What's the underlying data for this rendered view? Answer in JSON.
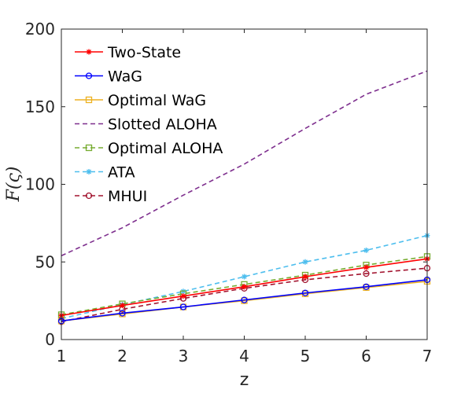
{
  "chart_data": {
    "type": "line",
    "title": "",
    "xlabel": "z",
    "ylabel": "F(ς)",
    "xlim": [
      1,
      7
    ],
    "ylim": [
      0,
      200
    ],
    "xticks": [
      1,
      2,
      3,
      4,
      5,
      6,
      7
    ],
    "yticks": [
      0,
      50,
      100,
      150,
      200
    ],
    "grid": false,
    "legend_position": "top-left",
    "x": [
      1,
      2,
      3,
      4,
      5,
      6,
      7
    ],
    "series": [
      {
        "name": "Two-State",
        "color": "#ff0000",
        "line": "solid",
        "marker": "star",
        "values": [
          15.5,
          22,
          28,
          34,
          40.5,
          46.5,
          52
        ]
      },
      {
        "name": "WaG",
        "color": "#0000ff",
        "line": "solid",
        "marker": "circle",
        "values": [
          12,
          17,
          21,
          25.5,
          30,
          34,
          38.5
        ]
      },
      {
        "name": "Optimal WaG",
        "color": "#edb120",
        "line": "solid",
        "marker": "square",
        "values": [
          12,
          16.5,
          21,
          25,
          29.5,
          33.5,
          37.5
        ]
      },
      {
        "name": "Slotted ALOHA",
        "color": "#7e2f8e",
        "line": "dashed",
        "marker": "none",
        "values": [
          54,
          72,
          93,
          113,
          136,
          158,
          173
        ]
      },
      {
        "name": "Optimal ALOHA",
        "color": "#77ac30",
        "line": "dashed",
        "marker": "square",
        "values": [
          16,
          23,
          29.5,
          35.5,
          41.5,
          48,
          53.5
        ]
      },
      {
        "name": "ATA",
        "color": "#4dbeee",
        "line": "dashed",
        "marker": "asterisk",
        "values": [
          13.5,
          22.5,
          31,
          40.5,
          50,
          57.5,
          67
        ]
      },
      {
        "name": "MHUI",
        "color": "#a2142f",
        "line": "dashed",
        "marker": "circle",
        "values": [
          11.5,
          19.5,
          26.5,
          33,
          38.5,
          42.5,
          46
        ]
      }
    ]
  }
}
